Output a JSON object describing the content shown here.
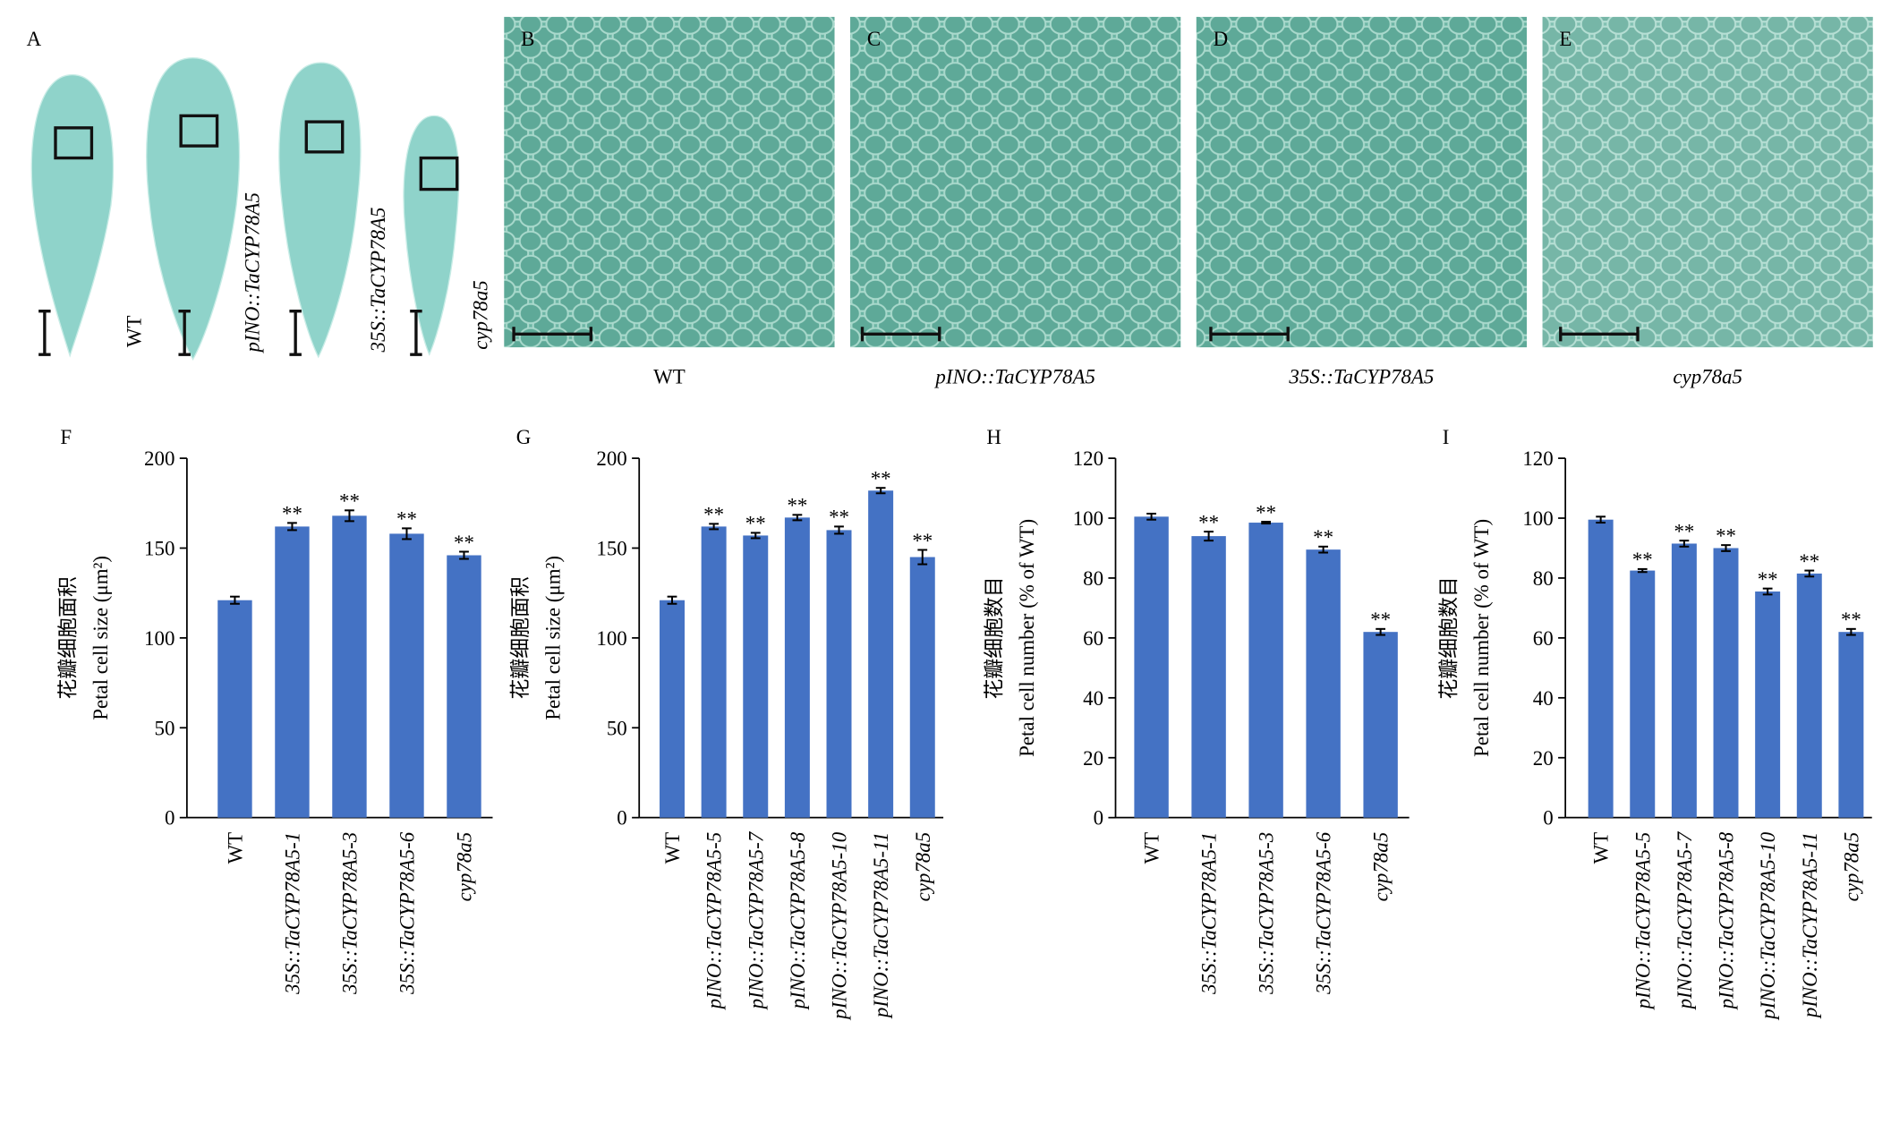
{
  "photos": {
    "panel_letters": [
      "A",
      "B",
      "C",
      "D",
      "E"
    ],
    "petal_labels": [
      "WT",
      "pINO::TaCYP78A5",
      "35S::TaCYP78A5",
      "cyp78a5"
    ],
    "image_labels": [
      "WT",
      "pINO::TaCYP78A5",
      "35S::TaCYP78A5",
      "cyp78a5"
    ]
  },
  "chart_data": [
    {
      "type": "bar",
      "panel": "F",
      "ylabel": [
        "花瓣细胞面积",
        "Petal cell size (μm²)"
      ],
      "categories": [
        "WT",
        "35S::TaCYP78A5-1",
        "35S::TaCYP78A5-3",
        "35S::TaCYP78A5-6",
        "cyp78a5"
      ],
      "category_italic": [
        false,
        true,
        true,
        true,
        true
      ],
      "values": [
        121,
        162,
        168,
        158,
        146
      ],
      "errors": [
        2,
        2,
        3,
        3,
        2
      ],
      "significance": [
        null,
        "**",
        "**",
        "**",
        "**"
      ],
      "color": "#4472c4",
      "ylim": [
        0,
        200
      ],
      "yticks": [
        0,
        50,
        100,
        150,
        200
      ]
    },
    {
      "type": "bar",
      "panel": "G",
      "ylabel": [
        "花瓣细胞面积",
        "Petal cell size (μm²)"
      ],
      "categories": [
        "WT",
        "pINO::TaCYP78A5-5",
        "pINO::TaCYP78A5-7",
        "pINO::TaCYP78A5-8",
        "pINO::TaCYP78A5-10",
        "pINO::TaCYP78A5-11",
        "cyp78a5"
      ],
      "category_italic": [
        false,
        true,
        true,
        true,
        true,
        true,
        true
      ],
      "values": [
        121,
        162,
        157,
        167,
        160,
        182,
        145
      ],
      "errors": [
        2,
        1.5,
        1.5,
        1.5,
        2,
        1.5,
        4
      ],
      "significance": [
        null,
        "**",
        "**",
        "**",
        "**",
        "**",
        "**"
      ],
      "color": "#4472c4",
      "ylim": [
        0,
        200
      ],
      "yticks": [
        0,
        50,
        100,
        150,
        200
      ]
    },
    {
      "type": "bar",
      "panel": "H",
      "ylabel": [
        "花瓣细胞数目",
        "Petal cell number (% of WT)"
      ],
      "categories": [
        "WT",
        "35S::TaCYP78A5-1",
        "35S::TaCYP78A5-3",
        "35S::TaCYP78A5-6",
        "cyp78a5"
      ],
      "category_italic": [
        false,
        true,
        true,
        true,
        true
      ],
      "values": [
        100.5,
        94,
        98.5,
        89.5,
        62
      ],
      "errors": [
        1,
        1.5,
        0.3,
        1,
        1
      ],
      "significance": [
        null,
        "**",
        "**",
        "**",
        "**"
      ],
      "color": "#4472c4",
      "ylim": [
        0,
        120
      ],
      "yticks": [
        0,
        20,
        40,
        60,
        80,
        100,
        120
      ]
    },
    {
      "type": "bar",
      "panel": "I",
      "ylabel": [
        "花瓣细胞数目",
        "Petal cell number (% of WT)"
      ],
      "categories": [
        "WT",
        "pINO::TaCYP78A5-5",
        "pINO::TaCYP78A5-7",
        "pINO::TaCYP78A5-8",
        "pINO::TaCYP78A5-10",
        "pINO::TaCYP78A5-11",
        "cyp78a5"
      ],
      "category_italic": [
        false,
        true,
        true,
        true,
        true,
        true,
        true
      ],
      "values": [
        99.5,
        82.5,
        91.5,
        90,
        75.5,
        81.5,
        62
      ],
      "errors": [
        1,
        0.5,
        1,
        1,
        1,
        1,
        1
      ],
      "significance": [
        null,
        "**",
        "**",
        "**",
        "**",
        "**",
        "**"
      ],
      "color": "#4472c4",
      "ylim": [
        0,
        120
      ],
      "yticks": [
        0,
        20,
        40,
        60,
        80,
        100,
        120
      ]
    }
  ]
}
